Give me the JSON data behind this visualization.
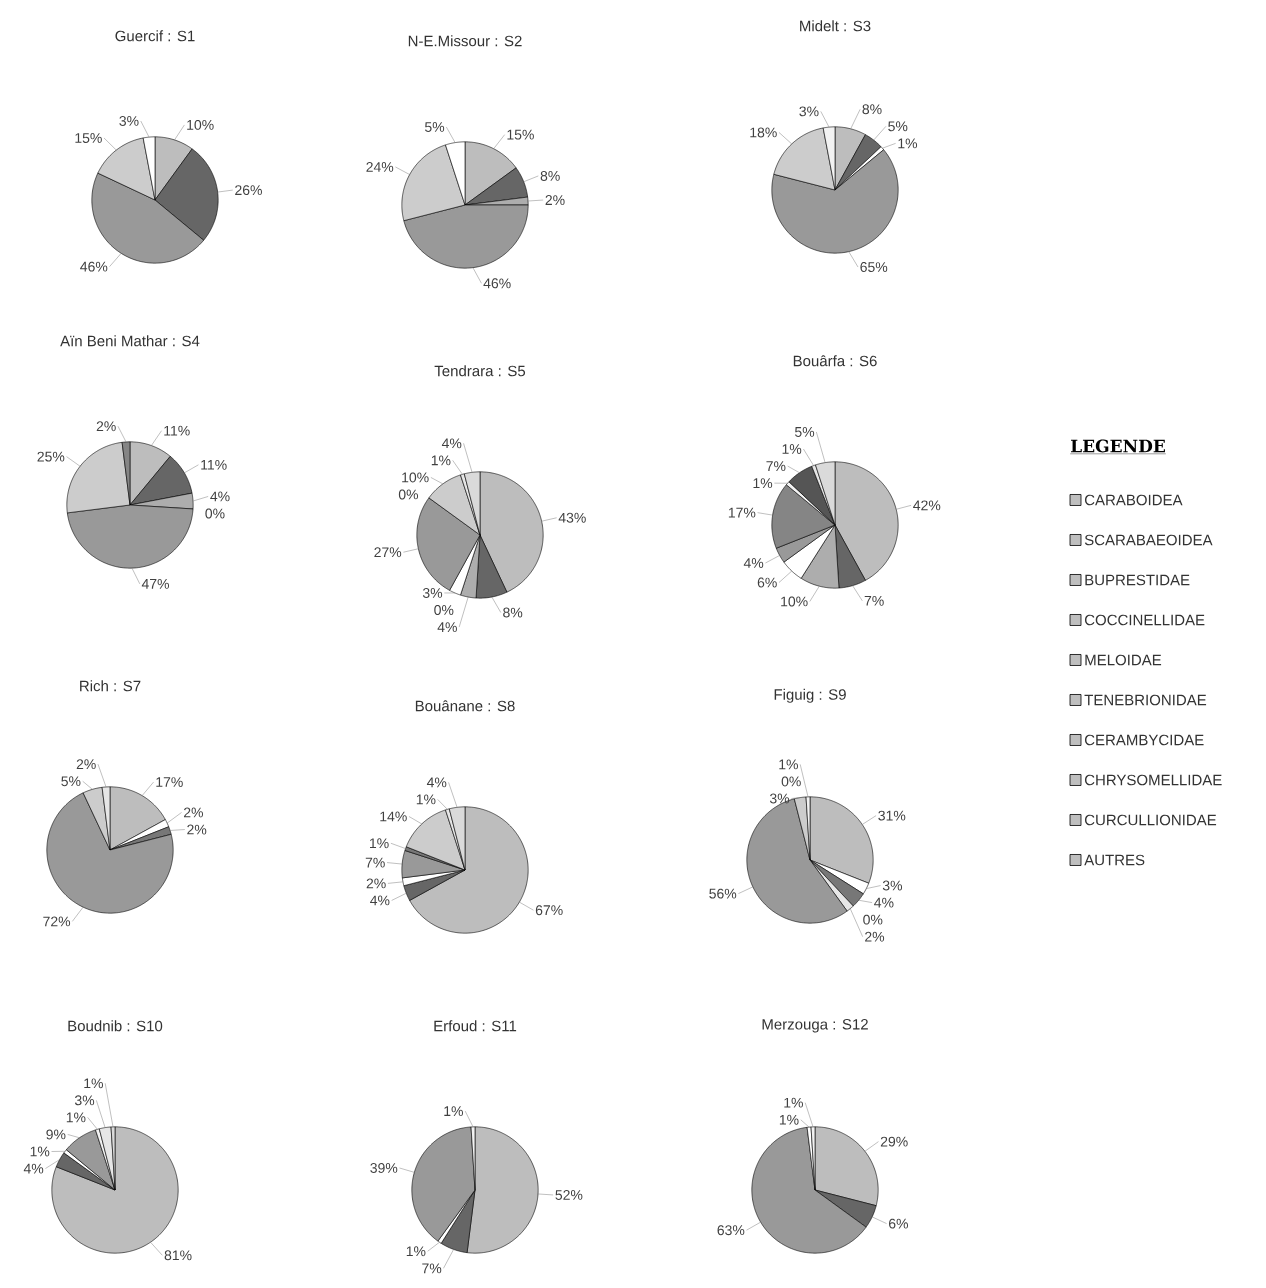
{
  "chart_data": [
    {
      "type": "pie",
      "title": "Guercif :  S1",
      "categories": [
        null,
        null,
        null,
        null,
        null
      ],
      "values": [
        10,
        26,
        46,
        15,
        3
      ],
      "value_labels": [
        "10%",
        "26%",
        "46%",
        "15%",
        "3%"
      ],
      "colors": [
        "#bdbdbd",
        "#666666",
        "#999999",
        "#cccccc",
        "#ffffff"
      ]
    },
    {
      "type": "pie",
      "title": "N-E.Missour : S2",
      "categories": [
        null,
        null,
        null,
        null,
        null,
        null
      ],
      "values": [
        15,
        8,
        2,
        46,
        24,
        5
      ],
      "value_labels": [
        "15%",
        "8%",
        "2%",
        "46%",
        "24%",
        "5%"
      ],
      "colors": [
        "#bdbdbd",
        "#666666",
        "#adadad",
        "#999999",
        "#cccccc",
        "#ffffff"
      ]
    },
    {
      "type": "pie",
      "title": "Midelt :  S3",
      "categories": [
        null,
        null,
        null,
        null,
        null,
        null
      ],
      "values": [
        8,
        5,
        1,
        65,
        18,
        3
      ],
      "value_labels": [
        "8%",
        "5%",
        "1%",
        "65%",
        "18%",
        "3%"
      ],
      "colors": [
        "#bdbdbd",
        "#666666",
        "#ffffff",
        "#999999",
        "#cccccc",
        "#f2f2f2"
      ]
    },
    {
      "type": "pie",
      "title": "Aïn Beni Mathar : S4",
      "categories": [
        null,
        null,
        null,
        null,
        null,
        null,
        null
      ],
      "values": [
        11,
        11,
        4,
        0,
        47,
        25,
        2
      ],
      "value_labels": [
        "11%",
        "11%",
        "4%",
        "0%",
        "47%",
        "25%",
        "2%"
      ],
      "colors": [
        "#bdbdbd",
        "#666666",
        "#adadad",
        "#ffffff",
        "#999999",
        "#cccccc",
        "#858585"
      ]
    },
    {
      "type": "pie",
      "title": "Tendrara : S5",
      "categories": [
        null,
        null,
        null,
        null,
        null,
        null,
        null,
        null,
        null,
        null
      ],
      "values": [
        43,
        8,
        4,
        0,
        3,
        27,
        0,
        10,
        1,
        4
      ],
      "value_labels": [
        "43%",
        "8%",
        "4%",
        "0%",
        "3%",
        "27%",
        "0%",
        "10%",
        "1%",
        "4%"
      ],
      "colors": [
        "#bdbdbd",
        "#666666",
        "#adadad",
        "#fafafa",
        "#ffffff",
        "#999999",
        "#f2f2f2",
        "#cccccc",
        "#e6e6e6",
        "#dadada"
      ]
    },
    {
      "type": "pie",
      "title": "Bouârfa : S6",
      "categories": [
        null,
        null,
        null,
        null,
        null,
        null,
        null,
        null,
        null,
        null
      ],
      "values": [
        42,
        7,
        10,
        6,
        4,
        17,
        1,
        7,
        1,
        5
      ],
      "value_labels": [
        "42%",
        "7%",
        "10%",
        "6%",
        "4%",
        "17%",
        "1%",
        "7%",
        "1%",
        "5%"
      ],
      "colors": [
        "#bdbdbd",
        "#666666",
        "#adadad",
        "#ffffff",
        "#999999",
        "#858585",
        "#f2f2f2",
        "#555555",
        "#e6e6e6",
        "#dadada"
      ]
    },
    {
      "type": "pie",
      "title": "Rich : S7",
      "categories": [
        null,
        null,
        null,
        null,
        null,
        null
      ],
      "values": [
        17,
        2,
        2,
        72,
        5,
        2
      ],
      "value_labels": [
        "17%",
        "2%",
        "2%",
        "72%",
        "5%",
        "2%"
      ],
      "colors": [
        "#bdbdbd",
        "#ffffff",
        "#777777",
        "#999999",
        "#cccccc",
        "#e6e6e6"
      ]
    },
    {
      "type": "pie",
      "title": "Bouânane : S8",
      "categories": [
        null,
        null,
        null,
        null,
        null,
        null,
        null,
        null
      ],
      "values": [
        67,
        4,
        2,
        7,
        1,
        14,
        1,
        4
      ],
      "value_labels": [
        "67%",
        "4%",
        "2%",
        "7%",
        "1%",
        "14%",
        "1%",
        "4%"
      ],
      "colors": [
        "#bdbdbd",
        "#666666",
        "#ffffff",
        "#999999",
        "#777777",
        "#cccccc",
        "#e6e6e6",
        "#dadada"
      ]
    },
    {
      "type": "pie",
      "title": "Figuig : S9",
      "categories": [
        null,
        null,
        null,
        null,
        null,
        null,
        null,
        null,
        null
      ],
      "values": [
        31,
        3,
        4,
        0,
        2,
        56,
        3,
        0,
        1
      ],
      "value_labels": [
        "31%",
        "3%",
        "4%",
        "0%",
        "2%",
        "56%",
        "3%",
        "0%",
        "1%"
      ],
      "colors": [
        "#bdbdbd",
        "#ffffff",
        "#777777",
        "#fafafa",
        "#e6e6e6",
        "#999999",
        "#cccccc",
        "#dadada",
        "#f2f2f2"
      ]
    },
    {
      "type": "pie",
      "title": "Boudnib : S10",
      "categories": [
        null,
        null,
        null,
        null,
        null,
        null,
        null
      ],
      "values": [
        81,
        4,
        1,
        9,
        1,
        3,
        1
      ],
      "value_labels": [
        "81%",
        "4%",
        "1%",
        "9%",
        "1%",
        "3%",
        "1%"
      ],
      "colors": [
        "#bdbdbd",
        "#666666",
        "#ffffff",
        "#999999",
        "#f2f2f2",
        "#e6e6e6",
        "#dadada"
      ]
    },
    {
      "type": "pie",
      "title": "Erfoud : S11",
      "categories": [
        null,
        null,
        null,
        null,
        null
      ],
      "values": [
        52,
        7,
        1,
        39,
        1
      ],
      "value_labels": [
        "52%",
        "7%",
        "1%",
        "39%",
        "1%"
      ],
      "colors": [
        "#bdbdbd",
        "#666666",
        "#ffffff",
        "#999999",
        "#f2f2f2"
      ]
    },
    {
      "type": "pie",
      "title": "Merzouga : S12",
      "categories": [
        null,
        null,
        null,
        null,
        null
      ],
      "values": [
        29,
        6,
        63,
        1,
        1
      ],
      "value_labels": [
        "29%",
        "6%",
        "63%",
        "1%",
        "1%"
      ],
      "colors": [
        "#bdbdbd",
        "#666666",
        "#999999",
        "#ffffff",
        "#f2f2f2"
      ]
    },
    {
      "type": "other",
      "title": "LEGENDE",
      "annotations": [
        "CARABOIDEA",
        "SCARABAEOIDEA",
        "BUPRESTIDAE",
        "COCCINELLIDAE",
        "MELOIDAE",
        "TENEBRIONIDAE",
        "CERAMBYCIDAE",
        "CHRYSOMELLIDAE",
        "CURCULLIONIDAE",
        "AUTRES"
      ]
    }
  ]
}
